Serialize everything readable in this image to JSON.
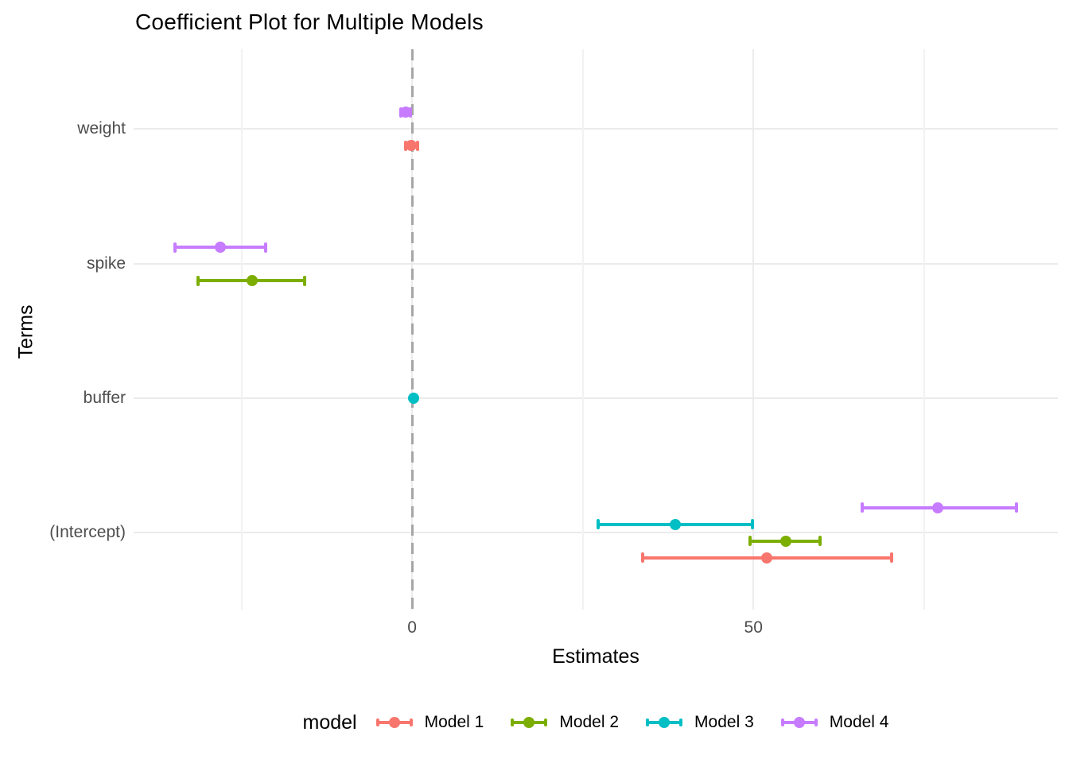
{
  "chart_data": {
    "type": "scatter",
    "subtype": "coefficient-plot-pointrange-with-errorbars",
    "title": "Coefficient Plot for Multiple Models",
    "xlabel": "Estimates",
    "ylabel": "Terms",
    "legend_title": "model",
    "legend_position": "bottom",
    "grid": true,
    "background": "#ffffff",
    "terms_top_to_bottom": [
      "weight",
      "spike",
      "buffer",
      "(Intercept)"
    ],
    "x_axis": {
      "range": [
        -40.8,
        94.6
      ],
      "major_ticks": [
        {
          "value": 0,
          "label": "0"
        },
        {
          "value": 50,
          "label": "50"
        }
      ],
      "minor_ticks": [
        -25,
        25,
        75
      ]
    },
    "zero_reference_line": {
      "x": 0,
      "style": "dashed",
      "color": "#A6A6A6"
    },
    "gridline_color": "#EBEBEB",
    "axis_text_color": "#4D4D4D",
    "series": [
      {
        "name": "Model 1",
        "color": "#F8766D",
        "points": [
          {
            "term": "weight",
            "estimate": -0.1,
            "ci_low": -0.9,
            "ci_high": 0.8
          },
          {
            "term": "(Intercept)",
            "estimate": 51.9,
            "ci_low": 33.8,
            "ci_high": 70.2
          }
        ]
      },
      {
        "name": "Model 2",
        "color": "#7CAE00",
        "points": [
          {
            "term": "spike",
            "estimate": -23.4,
            "ci_low": -31.4,
            "ci_high": -15.7
          },
          {
            "term": "(Intercept)",
            "estimate": 54.7,
            "ci_low": 49.5,
            "ci_high": 59.8
          }
        ]
      },
      {
        "name": "Model 3",
        "color": "#00BFC4",
        "points": [
          {
            "term": "buffer",
            "estimate": 0.2,
            "ci_low": 0.05,
            "ci_high": 0.35
          },
          {
            "term": "(Intercept)",
            "estimate": 38.5,
            "ci_low": 27.2,
            "ci_high": 49.8
          }
        ]
      },
      {
        "name": "Model 4",
        "color": "#C77CFF",
        "points": [
          {
            "term": "weight",
            "estimate": -0.9,
            "ci_low": -1.6,
            "ci_high": -0.2
          },
          {
            "term": "spike",
            "estimate": -28.1,
            "ci_low": -34.7,
            "ci_high": -21.4
          },
          {
            "term": "(Intercept)",
            "estimate": 77.0,
            "ci_low": 65.9,
            "ci_high": 88.5
          }
        ]
      }
    ]
  }
}
